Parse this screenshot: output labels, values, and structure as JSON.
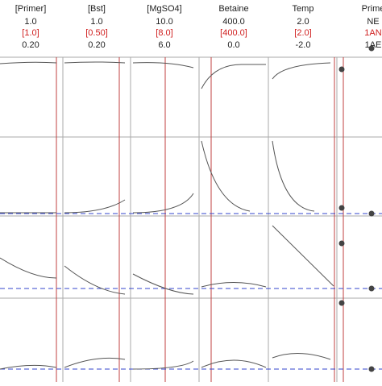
{
  "columns": [
    {
      "name": "[Primer]",
      "top": "1.0",
      "current": "[1.0]",
      "bottom": "0.20"
    },
    {
      "name": "[Bst]",
      "top": "1.0",
      "current": "[0.50]",
      "bottom": "0.20"
    },
    {
      "name": "[MgSO4]",
      "top": "10.0",
      "current": "[8.0]",
      "bottom": "6.0"
    },
    {
      "name": "Betaine",
      "top": "400.0",
      "current": "[400.0]",
      "bottom": "0.0"
    },
    {
      "name": "Temp",
      "top": "2.0",
      "current": "[2.0]",
      "bottom": "-2.0"
    },
    {
      "name": "Prime",
      "top": "NE",
      "current": "1AN",
      "bottom": "1AE"
    }
  ]
}
